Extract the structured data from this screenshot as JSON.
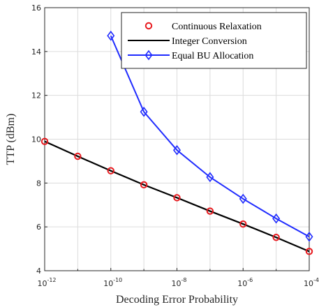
{
  "chart_data": {
    "type": "line",
    "title": "",
    "xlabel": "Decoding Error Probability",
    "ylabel": "TTP (dBm)",
    "xscale": "log",
    "xlim": [
      -12,
      -4
    ],
    "ylim": [
      4,
      16
    ],
    "xticks": [
      -12,
      -10,
      -8,
      -6,
      -4
    ],
    "xtick_labels": [
      "10",
      "10",
      "10",
      "10",
      "10"
    ],
    "xtick_exponents": [
      "-12",
      "-10",
      "-8",
      "-6",
      "-4"
    ],
    "yticks": [
      4,
      6,
      8,
      10,
      12,
      14,
      16
    ],
    "ytick_labels": [
      "4",
      "6",
      "8",
      "10",
      "12",
      "14",
      "16"
    ],
    "grid": true,
    "legend_position": "top-right",
    "series": [
      {
        "name": "Continuous Relaxation",
        "style": "markers",
        "marker": "circle",
        "color": "#e8191e",
        "x": [
          -12,
          -11,
          -10,
          -9,
          -8,
          -7,
          -6,
          -5,
          -4
        ],
        "y": [
          9.9,
          9.22,
          8.56,
          7.92,
          7.33,
          6.72,
          6.13,
          5.52,
          4.88
        ]
      },
      {
        "name": "Integer Conversion",
        "style": "line",
        "color": "#000000",
        "x": [
          -12,
          -11,
          -10,
          -9,
          -8,
          -7,
          -6,
          -5,
          -4
        ],
        "y": [
          9.9,
          9.22,
          8.56,
          7.92,
          7.33,
          6.72,
          6.13,
          5.52,
          4.88
        ]
      },
      {
        "name": "Equal BU Allocation",
        "style": "line+markers",
        "marker": "diamond",
        "color": "#1f2bff",
        "x": [
          -10,
          -9,
          -8,
          -7,
          -6,
          -5,
          -4
        ],
        "y": [
          14.72,
          11.25,
          9.5,
          8.27,
          7.28,
          6.38,
          5.55
        ]
      }
    ]
  }
}
